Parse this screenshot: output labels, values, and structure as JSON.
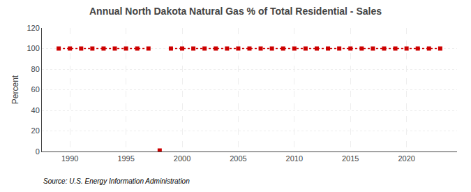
{
  "chart_data": {
    "type": "line",
    "title": "Annual North Dakota Natural Gas % of Total Residential - Sales",
    "ylabel": "Percent",
    "annotations": [
      "Source: U.S. Energy Information Administration"
    ],
    "x": [
      1989,
      1990,
      1991,
      1992,
      1993,
      1994,
      1995,
      1996,
      1997,
      1998,
      1999,
      2000,
      2001,
      2002,
      2003,
      2004,
      2005,
      2006,
      2007,
      2008,
      2009,
      2010,
      2011,
      2012,
      2013,
      2014,
      2015,
      2016,
      2017,
      2018,
      2019,
      2020,
      2021,
      2022,
      2023
    ],
    "series": [
      {
        "type": "line",
        "color": "#cc0000",
        "marker": "square",
        "line_style": "dotted",
        "values": [
          100,
          100,
          100,
          100,
          100,
          100,
          100,
          100,
          100,
          null,
          100,
          100,
          100,
          100,
          100,
          100,
          100,
          100,
          100,
          100,
          100,
          100,
          100,
          100,
          100,
          100,
          100,
          100,
          100,
          100,
          100,
          100,
          100,
          100,
          100
        ]
      },
      {
        "type": "scatter",
        "color": "#cc0000",
        "marker": "square",
        "values": [
          null,
          null,
          null,
          null,
          null,
          null,
          null,
          null,
          null,
          1.0,
          null,
          null,
          null,
          null,
          null,
          null,
          null,
          null,
          null,
          null,
          null,
          null,
          null,
          null,
          null,
          null,
          null,
          null,
          null,
          null,
          null,
          null,
          null,
          null,
          null
        ]
      }
    ],
    "xlim": [
      1987.5,
      2024.5
    ],
    "xticks": [
      1990,
      1995,
      2000,
      2005,
      2010,
      2015,
      2020
    ],
    "ylim": [
      0,
      120
    ],
    "yticks": [
      0,
      20,
      40,
      60,
      80,
      100,
      120
    ],
    "grid": true
  }
}
